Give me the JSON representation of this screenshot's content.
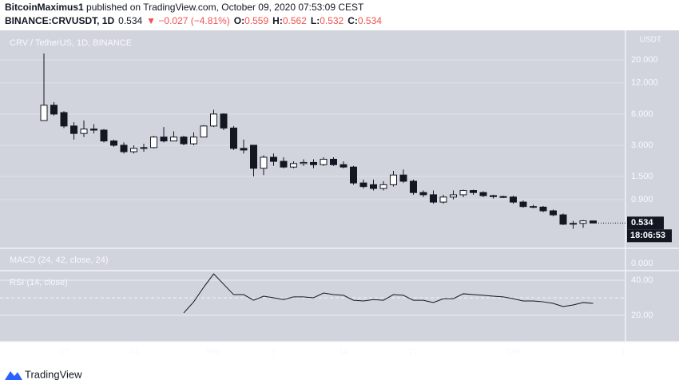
{
  "header": {
    "author": "BitcoinMaximus1",
    "published": " published on TradingView.com, October 09, 2020 07:53:09 CEST",
    "symbol": "BINANCE:CRVUSDT, 1D",
    "price": "0.534",
    "change": "▼ −0.027 (−4.81%)",
    "ohlc": [
      {
        "label": "O:",
        "value": "0.559"
      },
      {
        "label": "H:",
        "value": "0.562"
      },
      {
        "label": "L:",
        "value": "0.532"
      },
      {
        "label": "C:",
        "value": "0.534"
      }
    ]
  },
  "brand": "TradingView",
  "chart_data": {
    "type": "candlestick",
    "title": "CRV / TetherUS, 1D, BINANCE",
    "axis_unit": "USDT",
    "categories": [
      null,
      null,
      "17",
      null,
      null,
      null,
      null,
      null,
      null,
      "24",
      null,
      null,
      null,
      null,
      null,
      null,
      null,
      "Sep",
      null,
      null,
      null,
      null,
      null,
      "7",
      null,
      null,
      null,
      null,
      null,
      null,
      "14",
      null,
      null,
      null,
      null,
      null,
      null,
      "21",
      null,
      null,
      null,
      null,
      null,
      null,
      null,
      null,
      null,
      "Oct",
      null,
      null,
      null,
      null,
      null,
      null,
      null,
      null,
      null,
      null,
      "1"
    ],
    "open": [
      5.2,
      7.3,
      6.2,
      4.6,
      3.9,
      4.3,
      4.2,
      3.3,
      3.0,
      2.6,
      2.8,
      2.85,
      3.6,
      3.3,
      3.6,
      3.1,
      3.6,
      4.6,
      6.0,
      4.4,
      2.8,
      3.0,
      1.8,
      2.3,
      2.1,
      1.85,
      2.0,
      2.05,
      1.95,
      2.2,
      1.95,
      1.85,
      1.3,
      1.25,
      1.15,
      1.25,
      1.55,
      1.35,
      1.05,
      1.0,
      0.85,
      0.95,
      1.0,
      1.1,
      1.05,
      0.98,
      0.96,
      0.95,
      0.85,
      0.77,
      0.76,
      0.7,
      0.64,
      0.52,
      0.53,
      0.559,
      null,
      null,
      null
    ],
    "high": [
      23,
      7.8,
      6.4,
      5.0,
      5.2,
      4.8,
      4.3,
      3.4,
      3.2,
      3.0,
      3.1,
      3.7,
      4.5,
      4.1,
      3.7,
      4.0,
      4.7,
      6.6,
      6.1,
      4.6,
      3.4,
      3.0,
      2.4,
      2.5,
      2.3,
      2.1,
      2.2,
      2.2,
      2.3,
      2.3,
      2.1,
      1.9,
      1.4,
      1.4,
      1.35,
      1.7,
      1.75,
      1.4,
      1.1,
      1.1,
      1.0,
      1.1,
      1.12,
      1.12,
      1.08,
      1.0,
      0.98,
      0.98,
      0.88,
      0.8,
      0.78,
      0.72,
      0.66,
      0.56,
      0.57,
      0.562,
      null,
      null,
      null
    ],
    "low": [
      5.2,
      5.8,
      4.4,
      3.4,
      3.6,
      3.9,
      3.2,
      2.9,
      2.5,
      2.5,
      2.6,
      2.8,
      3.2,
      3.3,
      3.0,
      3.0,
      3.6,
      4.5,
      4.2,
      2.7,
      2.5,
      1.5,
      1.55,
      1.9,
      1.8,
      1.8,
      1.9,
      1.8,
      1.9,
      1.9,
      1.8,
      1.25,
      1.15,
      1.1,
      1.1,
      1.2,
      1.3,
      1.0,
      0.95,
      0.82,
      0.82,
      0.9,
      0.95,
      1.0,
      0.95,
      0.92,
      0.93,
      0.82,
      0.75,
      0.74,
      0.68,
      0.62,
      0.51,
      0.47,
      0.48,
      0.532,
      null,
      null,
      null
    ],
    "close": [
      7.3,
      6.0,
      4.6,
      3.9,
      4.3,
      4.2,
      3.3,
      3.0,
      2.6,
      2.8,
      2.85,
      3.6,
      3.3,
      3.6,
      3.1,
      3.6,
      4.6,
      6.0,
      4.4,
      2.8,
      2.7,
      1.8,
      2.3,
      2.1,
      1.85,
      2.0,
      2.05,
      1.95,
      2.2,
      1.95,
      1.85,
      1.3,
      1.2,
      1.15,
      1.25,
      1.55,
      1.35,
      1.05,
      1.0,
      0.85,
      0.95,
      1.0,
      1.1,
      1.05,
      0.98,
      0.96,
      0.95,
      0.85,
      0.77,
      0.76,
      0.7,
      0.64,
      0.52,
      0.53,
      0.56,
      0.534,
      null,
      null,
      null
    ],
    "up_color": "#ffffff",
    "down_color": "#131722",
    "log_scale": true,
    "grid": true,
    "ylim": [
      0.31,
      38.5
    ],
    "yticks": [
      {
        "value": 0.9,
        "label": "0.900"
      },
      {
        "value": 1.5,
        "label": "1.500"
      },
      {
        "value": 3,
        "label": "3.000"
      },
      {
        "value": 6,
        "label": "6.000"
      },
      {
        "value": 12,
        "label": "12.000"
      },
      {
        "value": 20,
        "label": "20.000"
      }
    ],
    "last_price": {
      "value": 0.534,
      "label": "0.534"
    },
    "countdown": "18:06:53",
    "indicators": [
      {
        "name": "MACD (24, 42, close, 24)",
        "ylim": [
          -0.3,
          0.7
        ],
        "yticks": [
          {
            "value": 0,
            "label": "0.000"
          }
        ]
      },
      {
        "name": "RSI (14, close)",
        "type": "line",
        "color": "#131722",
        "ylim": [
          5,
          45
        ],
        "yticks": [
          {
            "value": 20,
            "label": "20.00"
          },
          {
            "value": 40,
            "label": "40.00"
          }
        ],
        "dashed_level": 30,
        "values": [
          null,
          null,
          null,
          null,
          null,
          null,
          null,
          null,
          null,
          null,
          null,
          null,
          null,
          null,
          21.4,
          27.7,
          36,
          43.6,
          37.7,
          31.8,
          31.8,
          28.6,
          30.9,
          30,
          29,
          30.5,
          30.5,
          30,
          32.7,
          31.8,
          31.4,
          28.6,
          28.2,
          29,
          28.6,
          31.8,
          31.4,
          28.6,
          28.6,
          27.3,
          29.5,
          29.5,
          32.3,
          31.8,
          31.4,
          30.9,
          30.5,
          29.5,
          28.2,
          28.2,
          27.7,
          26.8,
          25,
          25.9,
          27.3,
          26.8,
          null,
          null,
          null
        ]
      }
    ]
  }
}
